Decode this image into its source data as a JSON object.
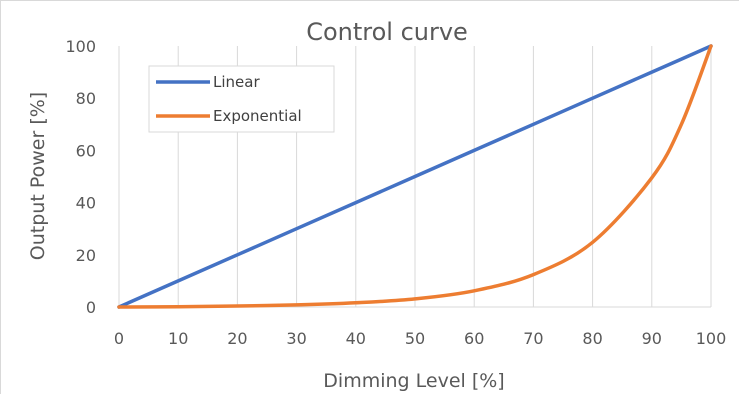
{
  "chart_data": {
    "type": "line",
    "title": "Control curve",
    "xlabel": "Dimming Level [%]",
    "ylabel": "Output Power [%]",
    "xlim": [
      0,
      100
    ],
    "ylim": [
      0,
      100
    ],
    "x_ticks": [
      "0",
      "10",
      "20",
      "30",
      "40",
      "50",
      "60",
      "70",
      "80",
      "90",
      "100"
    ],
    "y_ticks": [
      "0",
      "20",
      "40",
      "60",
      "80",
      "100"
    ],
    "grid": "vertical",
    "legend": "top-left",
    "x": [
      0,
      10,
      20,
      30,
      40,
      50,
      60,
      70,
      80,
      90,
      95,
      100
    ],
    "series": [
      {
        "name": "Linear",
        "color": "#4472c4",
        "values": [
          0,
          10,
          20,
          30,
          40,
          50,
          60,
          70,
          80,
          90,
          95,
          100
        ]
      },
      {
        "name": "Exponential",
        "color": "#ed7d31",
        "values": [
          0,
          0.1,
          0.4,
          0.8,
          1.6,
          3.1,
          6.2,
          12.4,
          24.8,
          49.5,
          70,
          100
        ]
      }
    ]
  }
}
